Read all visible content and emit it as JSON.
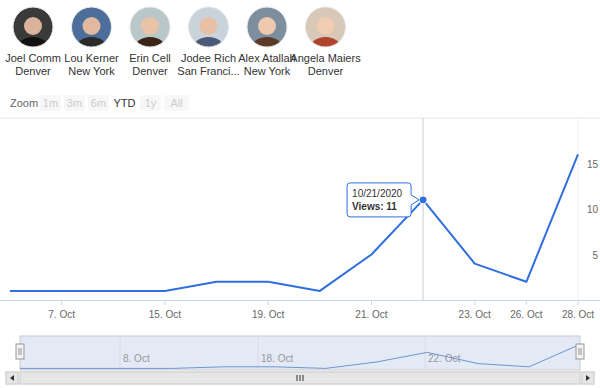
{
  "chart_data": {
    "type": "line",
    "people": [
      {
        "name": "Joel Comm",
        "city": "Denver"
      },
      {
        "name": "Lou Kerner",
        "city": "New York"
      },
      {
        "name": "Erin Cell",
        "city": "Denver"
      },
      {
        "name": "Jodee Rich",
        "city": "San Franci..."
      },
      {
        "name": "Alex Atallah",
        "city": "New York"
      },
      {
        "name": "Angela Maiers",
        "city": "Denver"
      }
    ],
    "range_selector": {
      "label": "Zoom",
      "buttons": [
        "1m",
        "3m",
        "6m",
        "YTD",
        "1y",
        "All"
      ],
      "selected": "YTD"
    },
    "categories": [
      null,
      "7. Oct",
      null,
      "15. Oct",
      null,
      "19. Oct",
      null,
      "21. Oct",
      null,
      "23. Oct",
      "26. Oct",
      "28. Oct"
    ],
    "values": [
      1,
      1,
      1,
      1,
      2,
      2,
      1,
      5,
      11,
      4,
      2,
      16
    ],
    "color": "#2f6fdf",
    "ylim": [
      0,
      20
    ],
    "yticks": [
      5,
      10,
      15
    ],
    "grid": false,
    "tooltip": {
      "title": "10/21/2020",
      "text": "Views: 11",
      "point": 8
    },
    "navigator": {
      "labels": [
        "8. Oct",
        "18. Oct",
        "22. Oct"
      ]
    }
  }
}
